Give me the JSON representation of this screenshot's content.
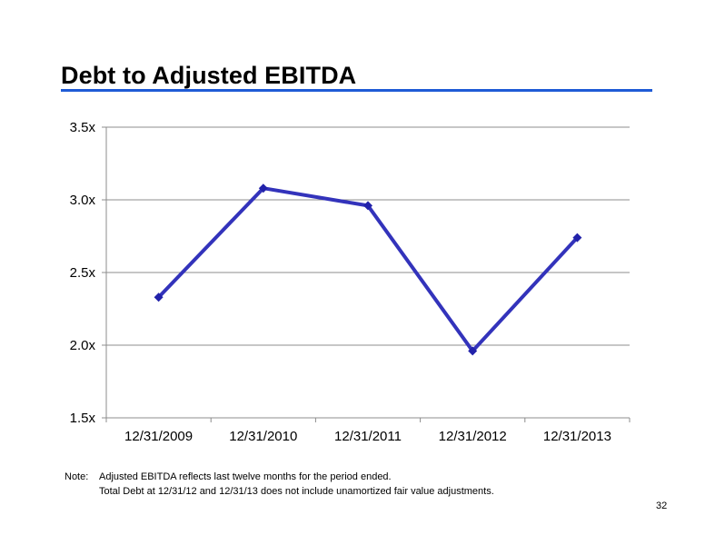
{
  "slide": {
    "title": "Debt to Adjusted EBITDA",
    "accent_color": "#1f5bd6",
    "page_number": "32"
  },
  "note": {
    "label": "Note:",
    "lines": [
      "Adjusted EBITDA reflects last twelve months for the period ended.",
      "Total Debt at 12/31/12 and 12/31/13 does not include unamortized fair value adjustments."
    ]
  },
  "chart_data": {
    "type": "line",
    "categories": [
      "12/31/2009",
      "12/31/2010",
      "12/31/2011",
      "12/31/2012",
      "12/31/2013"
    ],
    "series": [
      {
        "values": [
          2.33,
          3.08,
          2.96,
          1.96,
          2.74
        ],
        "color": "#3333bb",
        "marker_color": "#2222aa"
      }
    ],
    "ylim": [
      1.5,
      3.5
    ],
    "yticks": [
      1.5,
      2.0,
      2.5,
      3.0,
      3.5
    ],
    "ytick_labels": [
      "1.5x",
      "2.0x",
      "2.5x",
      "3.0x",
      "3.5x"
    ],
    "grid": true,
    "title": "",
    "xlabel": "",
    "ylabel": ""
  }
}
